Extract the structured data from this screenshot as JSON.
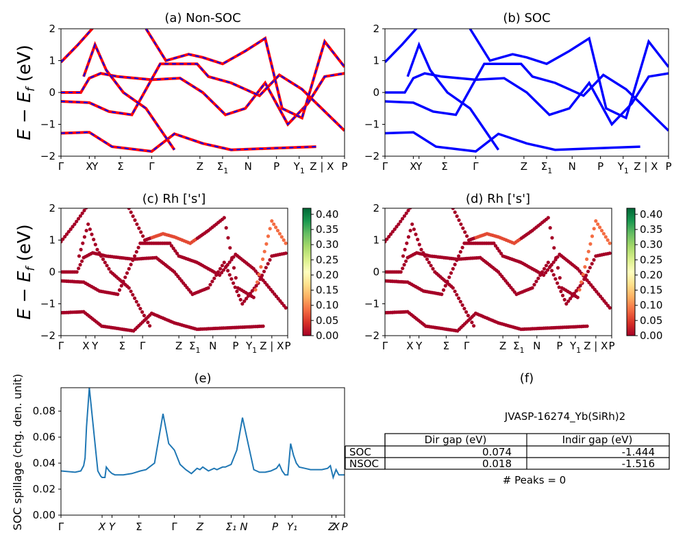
{
  "panels": {
    "a": {
      "title": "(a) Non-SOC"
    },
    "b": {
      "title": "(b) SOC"
    },
    "c": {
      "title": "(c)  Rh ['s']"
    },
    "d": {
      "title": "(d) Rh ['s']"
    },
    "e": {
      "title": "(e)"
    },
    "f": {
      "title": "(f)"
    }
  },
  "band_ylabel": {
    "main": "E − E",
    "sub": "f",
    "unit": " (eV)"
  },
  "band_yticks": [
    "2",
    "1",
    "0",
    "−1",
    "−2"
  ],
  "kpath_labels": [
    {
      "main": "Γ"
    },
    {
      "main": "X"
    },
    {
      "main": "Y"
    },
    {
      "main": "Σ"
    },
    {
      "main": "Γ"
    },
    {
      "main": "Z"
    },
    {
      "main": "Σ",
      "sub": "1"
    },
    {
      "main": "N"
    },
    {
      "main": "P"
    },
    {
      "main": "Y",
      "sub": "1"
    },
    {
      "main": "Z | X"
    },
    {
      "main": "P"
    }
  ],
  "colorbar": {
    "ticks": [
      "0.40",
      "0.35",
      "0.30",
      "0.25",
      "0.20",
      "0.15",
      "0.10",
      "0.05",
      "0.00"
    ]
  },
  "spillage": {
    "ylabel": "SOC spillage (chg. den. unit)",
    "yticks": [
      "0.08",
      "0.06",
      "0.04",
      "0.02",
      "0.00"
    ],
    "xlabels": [
      "Γ",
      "X",
      "Y",
      "Σ",
      "Γ",
      "Z",
      "Σ₁",
      "N",
      "P",
      "Y₁",
      "Z",
      "X",
      "P"
    ]
  },
  "info": {
    "material": "JVASP-16274_Yb(SiRh)2",
    "col_dir": "Dir gap (eV)",
    "col_indir": "Indir gap (eV)",
    "rows": [
      {
        "label": "SOC",
        "dir": "0.074",
        "indir": "-1.444"
      },
      {
        "label": "NSOC",
        "dir": "0.018",
        "indir": "-1.516"
      }
    ],
    "peaks": "# Peaks = 0"
  },
  "colors": {
    "nonsoc": "#ff0000",
    "soc": "#0000ff",
    "spillage_line": "#1f77b4"
  },
  "chart_data": [
    {
      "type": "line",
      "title": "(a) Non-SOC",
      "ylabel": "E − E_f (eV)",
      "ylim": [
        -2,
        2
      ],
      "x_ticks": [
        "Γ",
        "X",
        "Y",
        "Σ",
        "Γ",
        "Z",
        "Σ1",
        "N",
        "P",
        "Y1",
        "Z|X",
        "P"
      ],
      "note": "band structure, red solid with blue dashed overlay",
      "series": [
        {
          "values": [
            [
              0,
              0.95
            ],
            [
              0.06,
              1.5
            ],
            [
              0.12,
              2.1
            ]
          ]
        },
        {
          "values": [
            [
              0,
              0.0
            ],
            [
              0.07,
              0.0
            ],
            [
              0.1,
              0.45
            ],
            [
              0.14,
              0.6
            ],
            [
              0.17,
              0.55
            ],
            [
              0.2,
              0.5
            ],
            [
              0.32,
              0.4
            ],
            [
              0.42,
              0.45
            ],
            [
              0.5,
              0.0
            ],
            [
              0.58,
              -0.7
            ],
            [
              0.65,
              -0.5
            ],
            [
              0.72,
              0.3
            ],
            [
              0.8,
              -1.0
            ],
            [
              0.87,
              -0.35
            ],
            [
              0.93,
              0.5
            ],
            [
              1.0,
              0.6
            ]
          ]
        },
        {
          "values": [
            [
              0,
              -0.28
            ],
            [
              0.1,
              -0.32
            ],
            [
              0.17,
              -0.6
            ],
            [
              0.25,
              -0.7
            ],
            [
              0.35,
              0.9
            ],
            [
              0.48,
              0.9
            ],
            [
              0.52,
              0.5
            ],
            [
              0.6,
              0.3
            ],
            [
              0.7,
              -0.1
            ],
            [
              0.77,
              0.55
            ],
            [
              0.85,
              0.1
            ],
            [
              1.0,
              -1.2
            ]
          ]
        },
        {
          "values": [
            [
              0,
              -1.28
            ],
            [
              0.1,
              -1.25
            ],
            [
              0.18,
              -1.7
            ],
            [
              0.32,
              -1.85
            ],
            [
              0.4,
              -1.3
            ],
            [
              0.5,
              -1.6
            ],
            [
              0.6,
              -1.8
            ],
            [
              0.75,
              -1.75
            ],
            [
              0.9,
              -1.7
            ]
          ]
        },
        {
          "values": [
            [
              0.08,
              0.5
            ],
            [
              0.12,
              1.5
            ],
            [
              0.16,
              0.7
            ],
            [
              0.22,
              0.0
            ],
            [
              0.3,
              -0.5
            ],
            [
              0.4,
              -1.8
            ]
          ]
        },
        {
          "values": [
            [
              0.3,
              2.0
            ],
            [
              0.37,
              1.0
            ],
            [
              0.45,
              1.2
            ],
            [
              0.5,
              1.1
            ],
            [
              0.57,
              0.9
            ],
            [
              0.65,
              1.3
            ],
            [
              0.72,
              1.7
            ],
            [
              0.78,
              -0.5
            ],
            [
              0.85,
              -0.8
            ],
            [
              0.93,
              1.6
            ],
            [
              1.0,
              0.8
            ]
          ]
        }
      ]
    },
    {
      "type": "line",
      "title": "(b) SOC",
      "ylim": [
        -2,
        2
      ],
      "x_ticks": [
        "Γ",
        "X",
        "Y",
        "Σ",
        "Γ",
        "Z",
        "Σ1",
        "N",
        "P",
        "Y1",
        "Z|X",
        "P"
      ],
      "series": [
        {
          "values": [
            [
              0,
              0.95
            ],
            [
              0.06,
              1.5
            ],
            [
              0.12,
              2.1
            ]
          ]
        },
        {
          "values": [
            [
              0,
              0.0
            ],
            [
              0.07,
              0.0
            ],
            [
              0.1,
              0.45
            ],
            [
              0.14,
              0.6
            ],
            [
              0.17,
              0.55
            ],
            [
              0.2,
              0.5
            ],
            [
              0.32,
              0.4
            ],
            [
              0.42,
              0.45
            ],
            [
              0.5,
              0.0
            ],
            [
              0.58,
              -0.7
            ],
            [
              0.65,
              -0.5
            ],
            [
              0.72,
              0.3
            ],
            [
              0.8,
              -1.0
            ],
            [
              0.87,
              -0.35
            ],
            [
              0.93,
              0.5
            ],
            [
              1.0,
              0.6
            ]
          ]
        },
        {
          "values": [
            [
              0,
              -0.28
            ],
            [
              0.1,
              -0.32
            ],
            [
              0.17,
              -0.6
            ],
            [
              0.25,
              -0.7
            ],
            [
              0.35,
              0.9
            ],
            [
              0.48,
              0.9
            ],
            [
              0.52,
              0.5
            ],
            [
              0.6,
              0.3
            ],
            [
              0.7,
              -0.1
            ],
            [
              0.77,
              0.55
            ],
            [
              0.85,
              0.1
            ],
            [
              1.0,
              -1.2
            ]
          ]
        },
        {
          "values": [
            [
              0,
              -1.28
            ],
            [
              0.1,
              -1.25
            ],
            [
              0.18,
              -1.7
            ],
            [
              0.32,
              -1.85
            ],
            [
              0.4,
              -1.3
            ],
            [
              0.5,
              -1.6
            ],
            [
              0.6,
              -1.8
            ],
            [
              0.75,
              -1.75
            ],
            [
              0.9,
              -1.7
            ]
          ]
        },
        {
          "values": [
            [
              0.08,
              0.5
            ],
            [
              0.12,
              1.5
            ],
            [
              0.16,
              0.7
            ],
            [
              0.22,
              0.0
            ],
            [
              0.3,
              -0.5
            ],
            [
              0.4,
              -1.8
            ]
          ]
        },
        {
          "values": [
            [
              0.3,
              2.0
            ],
            [
              0.37,
              1.0
            ],
            [
              0.45,
              1.2
            ],
            [
              0.5,
              1.1
            ],
            [
              0.57,
              0.9
            ],
            [
              0.65,
              1.3
            ],
            [
              0.72,
              1.7
            ],
            [
              0.78,
              -0.5
            ],
            [
              0.85,
              -0.8
            ],
            [
              0.93,
              1.6
            ],
            [
              1.0,
              0.8
            ]
          ]
        }
      ]
    },
    {
      "type": "scatter",
      "title": "(c)  Rh ['s']",
      "ylim": [
        -2,
        2
      ],
      "colorbar_range": [
        0.0,
        0.42
      ]
    },
    {
      "type": "scatter",
      "title": "(d) Rh ['s']",
      "ylim": [
        -2,
        2
      ],
      "colorbar_range": [
        0.0,
        0.42
      ]
    },
    {
      "type": "line",
      "title": "(e)",
      "ylabel": "SOC spillage (chg. den. unit)",
      "ylim": [
        0,
        0.098
      ],
      "xlim": [
        0,
        1
      ],
      "x": [
        0,
        0.05,
        0.07,
        0.08,
        0.085,
        0.09,
        0.1,
        0.12,
        0.13,
        0.14,
        0.145,
        0.15,
        0.155,
        0.16,
        0.17,
        0.18,
        0.19,
        0.2,
        0.22,
        0.25,
        0.28,
        0.3,
        0.33,
        0.36,
        0.38,
        0.4,
        0.42,
        0.44,
        0.46,
        0.47,
        0.48,
        0.49,
        0.5,
        0.52,
        0.54,
        0.55,
        0.56,
        0.57,
        0.58,
        0.6,
        0.62,
        0.64,
        0.66,
        0.68,
        0.7,
        0.72,
        0.74,
        0.76,
        0.77,
        0.78,
        0.79,
        0.8,
        0.81,
        0.82,
        0.83,
        0.84,
        0.86,
        0.88,
        0.9,
        0.92,
        0.94,
        0.95,
        0.96,
        0.97,
        0.98,
        0.99,
        1.0
      ],
      "values": [
        0.034,
        0.033,
        0.034,
        0.038,
        0.044,
        0.068,
        0.098,
        0.055,
        0.034,
        0.03,
        0.029,
        0.029,
        0.029,
        0.037,
        0.034,
        0.032,
        0.031,
        0.031,
        0.031,
        0.032,
        0.034,
        0.035,
        0.04,
        0.078,
        0.055,
        0.05,
        0.039,
        0.035,
        0.032,
        0.034,
        0.036,
        0.035,
        0.037,
        0.034,
        0.036,
        0.035,
        0.036,
        0.037,
        0.037,
        0.039,
        0.05,
        0.075,
        0.055,
        0.035,
        0.033,
        0.033,
        0.034,
        0.036,
        0.039,
        0.034,
        0.031,
        0.031,
        0.055,
        0.046,
        0.04,
        0.037,
        0.036,
        0.035,
        0.035,
        0.035,
        0.036,
        0.038,
        0.029,
        0.035,
        0.031,
        0.031,
        0.031
      ]
    }
  ]
}
